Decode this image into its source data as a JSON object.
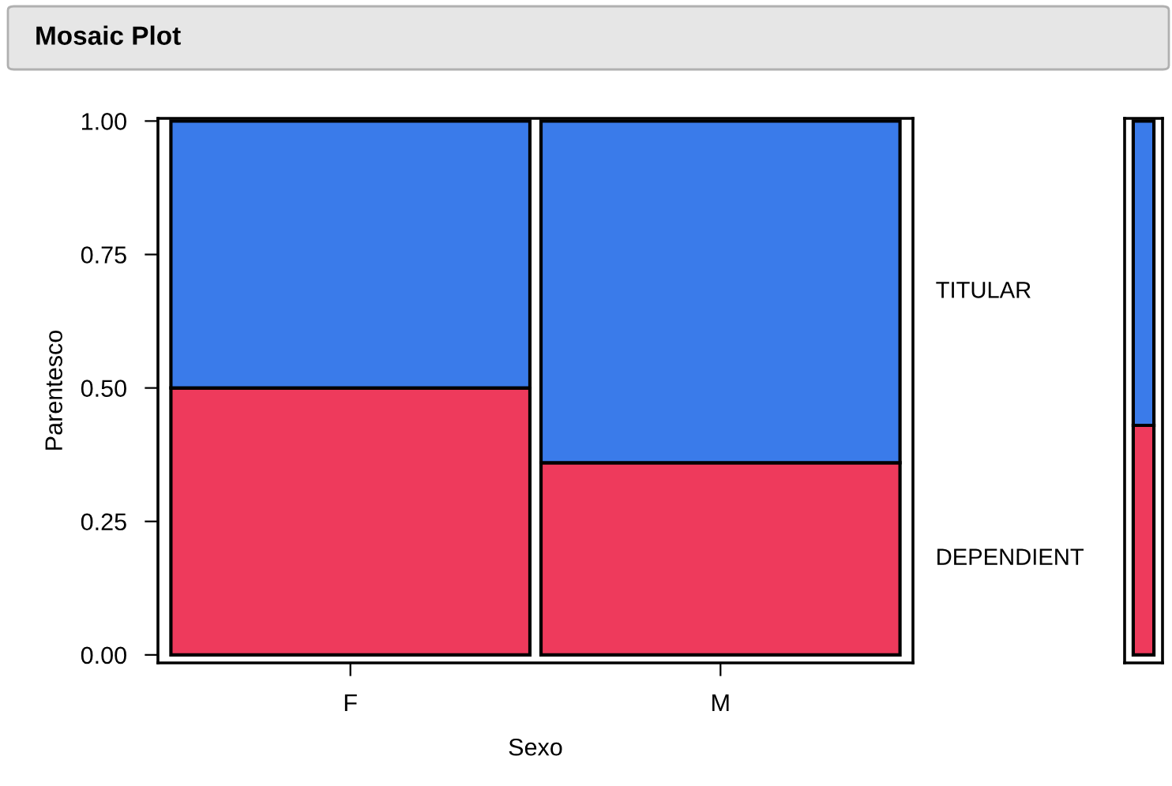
{
  "chart_data": [
    {
      "type": "bar",
      "title": "Mosaic Plot",
      "xlabel": "Sexo",
      "ylabel": "Parentesco",
      "categories": [
        "F",
        "M"
      ],
      "stacked": true,
      "ylim": [
        0,
        1
      ],
      "yticks": [
        {
          "value": 0,
          "label": "0.00"
        },
        {
          "value": 0.25,
          "label": "0.25"
        },
        {
          "value": 0.5,
          "label": "0.50"
        },
        {
          "value": 0.75,
          "label": "0.75"
        },
        {
          "value": 1,
          "label": "1.00"
        }
      ],
      "grid": false,
      "legend": false,
      "series": [
        {
          "name": "DEPENDIENT",
          "color": "#ee3a5c",
          "values": [
            0.5,
            0.36
          ]
        },
        {
          "name": "TITULAR",
          "color": "#3a7bea",
          "values": [
            0.5,
            0.64
          ]
        }
      ]
    },
    {
      "type": "bar",
      "categories": [
        null
      ],
      "stacked": true,
      "ylim": [
        0,
        1
      ],
      "tick_labels": false,
      "series": [
        {
          "color": "#ee3a5c",
          "values": [
            0.43
          ]
        },
        {
          "color": "#3a7bea",
          "values": [
            0.57
          ]
        }
      ]
    }
  ]
}
